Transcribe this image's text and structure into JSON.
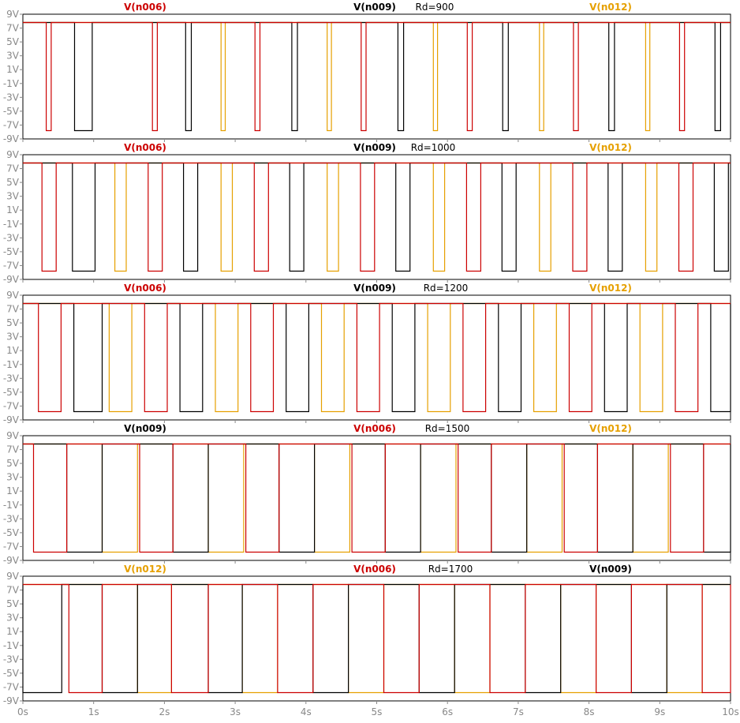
{
  "chart_data": {
    "type": "line",
    "x_ticks": [
      "0s",
      "1s",
      "2s",
      "3s",
      "4s",
      "5s",
      "6s",
      "7s",
      "8s",
      "9s",
      "10s"
    ],
    "xlim": [
      0,
      10
    ],
    "y_ticks": [
      "9V",
      "7V",
      "5V",
      "3V",
      "1V",
      "-1V",
      "-3V",
      "-5V",
      "-7V",
      "-9V"
    ],
    "ylim": [
      -9,
      9
    ],
    "grid": false,
    "colors": {
      "V(n006)": "#cc0000",
      "V(n009)": "#000000",
      "V(n012)": "#e6a000"
    },
    "panels": [
      {
        "annotation": "Rd=900",
        "legend": [
          {
            "name": "V(n006)",
            "color": "#cc0000"
          },
          {
            "name": "V(n009)",
            "color": "#000000"
          },
          {
            "name": "V(n012)",
            "color": "#e6a000"
          }
        ],
        "high": 7.8,
        "low": -7.8,
        "pulses": {
          "V(n012)": [
            [
              2.8,
              2.86
            ],
            [
              4.3,
              4.36
            ],
            [
              5.8,
              5.86
            ],
            [
              7.3,
              7.36
            ],
            [
              8.8,
              8.86
            ]
          ],
          "V(n006)": [
            [
              0.33,
              0.4
            ],
            [
              1.83,
              1.9
            ],
            [
              3.28,
              3.35
            ],
            [
              4.78,
              4.85
            ],
            [
              6.28,
              6.35
            ],
            [
              7.78,
              7.85
            ],
            [
              9.28,
              9.35
            ]
          ],
          "V(n009)": [
            [
              0.73,
              0.98
            ],
            [
              2.3,
              2.38
            ],
            [
              3.8,
              3.88
            ],
            [
              5.3,
              5.38
            ],
            [
              6.78,
              6.86
            ],
            [
              8.28,
              8.36
            ],
            [
              9.78,
              9.86
            ]
          ]
        }
      },
      {
        "annotation": "Rd=1000",
        "legend": [
          {
            "name": "V(n006)",
            "color": "#cc0000"
          },
          {
            "name": "V(n009)",
            "color": "#000000"
          },
          {
            "name": "V(n012)",
            "color": "#e6a000"
          }
        ],
        "high": 7.8,
        "low": -7.8,
        "pulses": {
          "V(n006)": [
            [
              0.27,
              0.47
            ],
            [
              1.77,
              1.97
            ],
            [
              3.27,
              3.47
            ],
            [
              4.77,
              4.97
            ],
            [
              6.27,
              6.47
            ],
            [
              7.77,
              7.97
            ],
            [
              9.27,
              9.47
            ]
          ],
          "V(n009)": [
            [
              0.7,
              1.02
            ],
            [
              2.27,
              2.47
            ],
            [
              3.77,
              3.97
            ],
            [
              5.27,
              5.47
            ],
            [
              6.77,
              6.97
            ],
            [
              8.27,
              8.47
            ],
            [
              9.77,
              9.97
            ]
          ],
          "V(n012)": [
            [
              1.3,
              1.46
            ],
            [
              2.8,
              2.96
            ],
            [
              4.3,
              4.46
            ],
            [
              5.8,
              5.96
            ],
            [
              7.3,
              7.46
            ],
            [
              8.8,
              8.96
            ]
          ]
        }
      },
      {
        "annotation": "Rd=1200",
        "legend": [
          {
            "name": "V(n006)",
            "color": "#cc0000"
          },
          {
            "name": "V(n009)",
            "color": "#000000"
          },
          {
            "name": "V(n012)",
            "color": "#e6a000"
          }
        ],
        "high": 7.8,
        "low": -7.8,
        "pulses": {
          "V(n006)": [
            [
              0.22,
              0.54
            ],
            [
              1.72,
              2.04
            ],
            [
              3.22,
              3.54
            ],
            [
              4.72,
              5.04
            ],
            [
              6.22,
              6.54
            ],
            [
              7.72,
              8.04
            ],
            [
              9.22,
              9.54
            ]
          ],
          "V(n009)": [
            [
              0.72,
              1.12
            ],
            [
              2.22,
              2.54
            ],
            [
              3.72,
              4.04
            ],
            [
              5.22,
              5.54
            ],
            [
              6.72,
              7.04
            ],
            [
              8.22,
              8.54
            ],
            [
              9.72,
              10.0
            ]
          ],
          "V(n012)": [
            [
              1.22,
              1.54
            ],
            [
              2.72,
              3.04
            ],
            [
              4.22,
              4.54
            ],
            [
              5.72,
              6.04
            ],
            [
              7.22,
              7.54
            ],
            [
              8.72,
              9.04
            ]
          ]
        }
      },
      {
        "annotation": "Rd=1500",
        "legend": [
          {
            "name": "V(n009)",
            "color": "#000000"
          },
          {
            "name": "V(n006)",
            "color": "#cc0000"
          },
          {
            "name": "V(n012)",
            "color": "#e6a000"
          }
        ],
        "high": 7.8,
        "low": -7.8,
        "pulses": {
          "V(n006)": [
            [
              0.15,
              0.62
            ],
            [
              1.65,
              2.12
            ],
            [
              3.15,
              3.62
            ],
            [
              4.65,
              5.12
            ],
            [
              6.15,
              6.62
            ],
            [
              7.65,
              8.12
            ],
            [
              9.15,
              9.62
            ]
          ],
          "V(n009)": [
            [
              0.62,
              1.12
            ],
            [
              2.12,
              2.62
            ],
            [
              3.62,
              4.12
            ],
            [
              5.12,
              5.62
            ],
            [
              6.62,
              7.12
            ],
            [
              8.12,
              8.62
            ],
            [
              9.62,
              10.0
            ]
          ],
          "V(n012)": [
            [
              1.12,
              1.62
            ],
            [
              2.62,
              3.12
            ],
            [
              4.12,
              4.62
            ],
            [
              5.62,
              6.12
            ],
            [
              7.12,
              7.62
            ],
            [
              8.62,
              9.12
            ]
          ]
        }
      },
      {
        "annotation": "Rd=1700",
        "legend": [
          {
            "name": "V(n012)",
            "color": "#e6a000"
          },
          {
            "name": "V(n006)",
            "color": "#cc0000"
          },
          {
            "name": "V(n009)",
            "color": "#000000"
          }
        ],
        "high": 7.8,
        "low": -7.8,
        "pulses": {
          "V(n006)": [
            [
              0.65,
              1.12
            ],
            [
              2.1,
              2.62
            ],
            [
              3.6,
              4.1
            ],
            [
              5.1,
              5.6
            ],
            [
              6.6,
              7.1
            ],
            [
              8.1,
              8.6
            ],
            [
              9.6,
              10.0
            ]
          ],
          "V(n009)": [
            [
              0.0,
              0.55
            ],
            [
              1.12,
              1.62
            ],
            [
              2.62,
              3.1
            ],
            [
              4.1,
              4.6
            ],
            [
              5.6,
              6.1
            ],
            [
              7.1,
              7.6
            ],
            [
              8.6,
              9.1
            ]
          ],
          "V(n012)": [
            [
              1.62,
              2.1
            ],
            [
              3.1,
              3.6
            ],
            [
              4.6,
              5.1
            ],
            [
              6.1,
              6.6
            ],
            [
              7.6,
              8.1
            ],
            [
              9.1,
              9.6
            ]
          ]
        }
      }
    ]
  }
}
